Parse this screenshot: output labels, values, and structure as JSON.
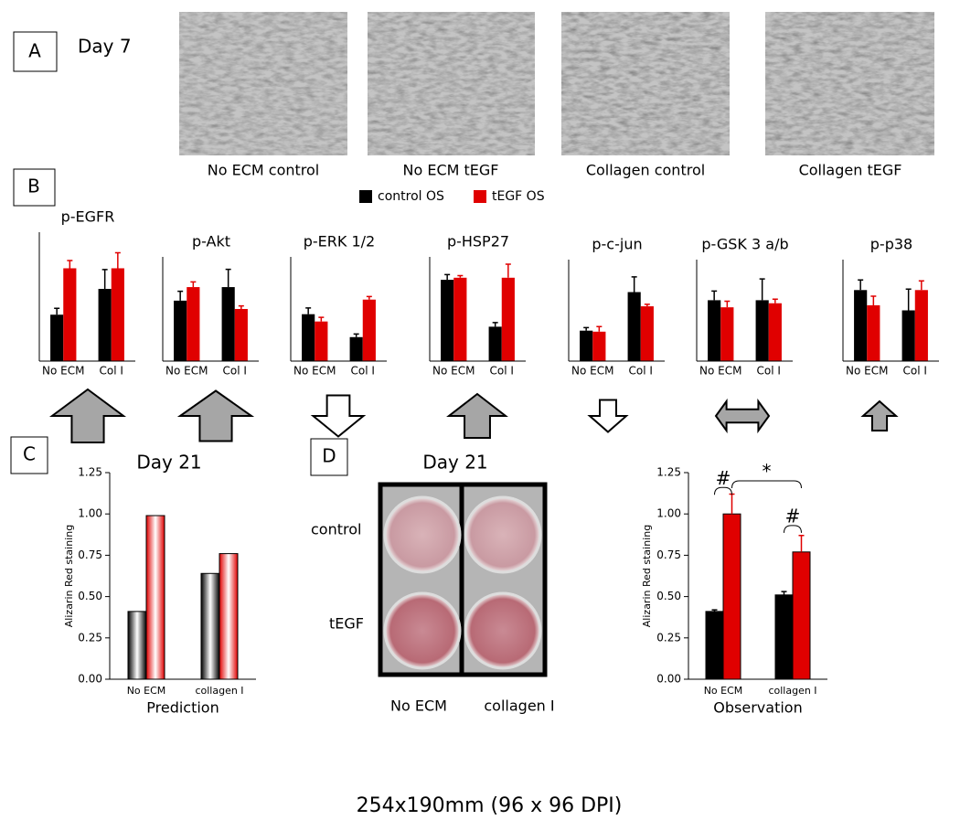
{
  "panel_a": {
    "label": "A",
    "day": "Day 7",
    "captions": [
      "No ECM control",
      "No ECM tEGF",
      "Collagen control",
      "Collagen tEGF"
    ]
  },
  "panel_b": {
    "label": "B",
    "legend": [
      {
        "name": "control OS",
        "color": "#000000"
      },
      {
        "name": "tEGF OS",
        "color": "#e00000"
      }
    ],
    "arrows": [
      {
        "direction": "up",
        "fill": "#a6a6a6"
      },
      {
        "direction": "up",
        "fill": "#a6a6a6"
      },
      {
        "direction": "down",
        "fill": "#ffffff"
      },
      {
        "direction": "up",
        "fill": "#a6a6a6"
      },
      {
        "direction": "down",
        "fill": "#ffffff"
      },
      {
        "direction": "both",
        "fill": "#a6a6a6"
      },
      {
        "direction": "up",
        "fill": "#a6a6a6"
      }
    ]
  },
  "panel_c": {
    "label": "C"
  },
  "panel_d": {
    "label": "D",
    "plate_title": "Day 21",
    "rows": [
      "control",
      "tEGF"
    ],
    "columns": [
      "No ECM",
      "collagen I"
    ]
  },
  "chart_data": [
    {
      "type": "bar",
      "title": "p-EGFR",
      "categories": [
        "No ECM",
        "Col I"
      ],
      "ylim": [
        0,
        1
      ],
      "series": [
        {
          "color": "#000000",
          "values": [
            0.36,
            0.56
          ],
          "errors": [
            0.05,
            0.15
          ]
        },
        {
          "color": "#e00000",
          "values": [
            0.72,
            0.72
          ],
          "errors": [
            0.06,
            0.12
          ]
        }
      ]
    },
    {
      "type": "bar",
      "title": "p-Akt",
      "categories": [
        "No ECM",
        "Col I"
      ],
      "ylim": [
        0,
        1
      ],
      "series": [
        {
          "color": "#000000",
          "values": [
            0.58,
            0.71
          ],
          "errors": [
            0.09,
            0.17
          ]
        },
        {
          "color": "#e00000",
          "values": [
            0.71,
            0.5
          ],
          "errors": [
            0.05,
            0.03
          ]
        }
      ]
    },
    {
      "type": "bar",
      "title": "p-ERK 1/2",
      "categories": [
        "No ECM",
        "Col I"
      ],
      "ylim": [
        0,
        1
      ],
      "series": [
        {
          "color": "#000000",
          "values": [
            0.45,
            0.23
          ],
          "errors": [
            0.06,
            0.03
          ]
        },
        {
          "color": "#e00000",
          "values": [
            0.38,
            0.59
          ],
          "errors": [
            0.04,
            0.03
          ]
        }
      ]
    },
    {
      "type": "bar",
      "title": "p-HSP27",
      "categories": [
        "No ECM",
        "Col I"
      ],
      "ylim": [
        0,
        1
      ],
      "series": [
        {
          "color": "#000000",
          "values": [
            0.78,
            0.33
          ],
          "errors": [
            0.05,
            0.04
          ]
        },
        {
          "color": "#e00000",
          "values": [
            0.8,
            0.8
          ],
          "errors": [
            0.02,
            0.13
          ]
        }
      ]
    },
    {
      "type": "bar",
      "title": "p-c-jun",
      "categories": [
        "No ECM",
        "Col I"
      ],
      "ylim": [
        0,
        1
      ],
      "series": [
        {
          "color": "#000000",
          "values": [
            0.3,
            0.68
          ],
          "errors": [
            0.03,
            0.15
          ]
        },
        {
          "color": "#e00000",
          "values": [
            0.29,
            0.54
          ],
          "errors": [
            0.05,
            0.02
          ]
        }
      ]
    },
    {
      "type": "bar",
      "title": "p-GSK 3 a/b",
      "categories": [
        "No ECM",
        "Col I"
      ],
      "ylim": [
        0,
        1
      ],
      "series": [
        {
          "color": "#000000",
          "values": [
            0.6,
            0.6
          ],
          "errors": [
            0.09,
            0.21
          ]
        },
        {
          "color": "#e00000",
          "values": [
            0.53,
            0.57
          ],
          "errors": [
            0.06,
            0.04
          ]
        }
      ]
    },
    {
      "type": "bar",
      "title": "p-p38",
      "categories": [
        "No ECM",
        "Col I"
      ],
      "ylim": [
        0,
        1
      ],
      "series": [
        {
          "color": "#000000",
          "values": [
            0.7,
            0.5
          ],
          "errors": [
            0.1,
            0.21
          ]
        },
        {
          "color": "#e00000",
          "values": [
            0.55,
            0.7
          ],
          "errors": [
            0.09,
            0.09
          ]
        }
      ]
    },
    {
      "type": "bar",
      "title": "Day 21",
      "ylabel": "Alizarin Red staining",
      "xlabel": "Prediction",
      "categories": [
        "No ECM",
        "collagen I"
      ],
      "fill_style": "gradient",
      "ylim": [
        0,
        1.25
      ],
      "yticks": [
        {
          "value": 0,
          "label": "0.00"
        },
        0.25,
        {
          "value": 0.5,
          "label": "0.50"
        },
        {
          "value": 0.75,
          "label": "0.75"
        },
        {
          "value": 1,
          "label": "1.00"
        },
        1.25
      ],
      "series": [
        {
          "color": "#000000",
          "values": [
            0.41,
            0.64
          ]
        },
        {
          "color": "#e00000",
          "values": [
            0.99,
            0.76
          ]
        }
      ]
    },
    {
      "type": "bar",
      "ylabel": "Alizarin Red staining",
      "xlabel": "Observation",
      "categories": [
        "No ECM",
        "collagen I"
      ],
      "ylim": [
        0,
        1.25
      ],
      "yticks": [
        {
          "value": 0,
          "label": "0.00"
        },
        0.25,
        {
          "value": 0.5,
          "label": "0.50"
        },
        {
          "value": 0.75,
          "label": "0.75"
        },
        {
          "value": 1,
          "label": "1.00"
        },
        1.25
      ],
      "series": [
        {
          "color": "#000000",
          "values": [
            0.41,
            0.51
          ],
          "errors": [
            0.01,
            0.02
          ]
        },
        {
          "color": "#e00000",
          "values": [
            1.0,
            0.77
          ],
          "errors": [
            0.12,
            0.1
          ]
        }
      ],
      "annotations": [
        {
          "text": "#",
          "span": [
            0,
            1
          ],
          "y": 1.16
        },
        {
          "text": "*",
          "span": [
            1,
            3
          ],
          "y": 1.2
        },
        {
          "text": "#",
          "span": [
            2,
            3
          ],
          "y": 0.93
        }
      ]
    }
  ],
  "footer": "254x190mm (96 x 96 DPI)"
}
